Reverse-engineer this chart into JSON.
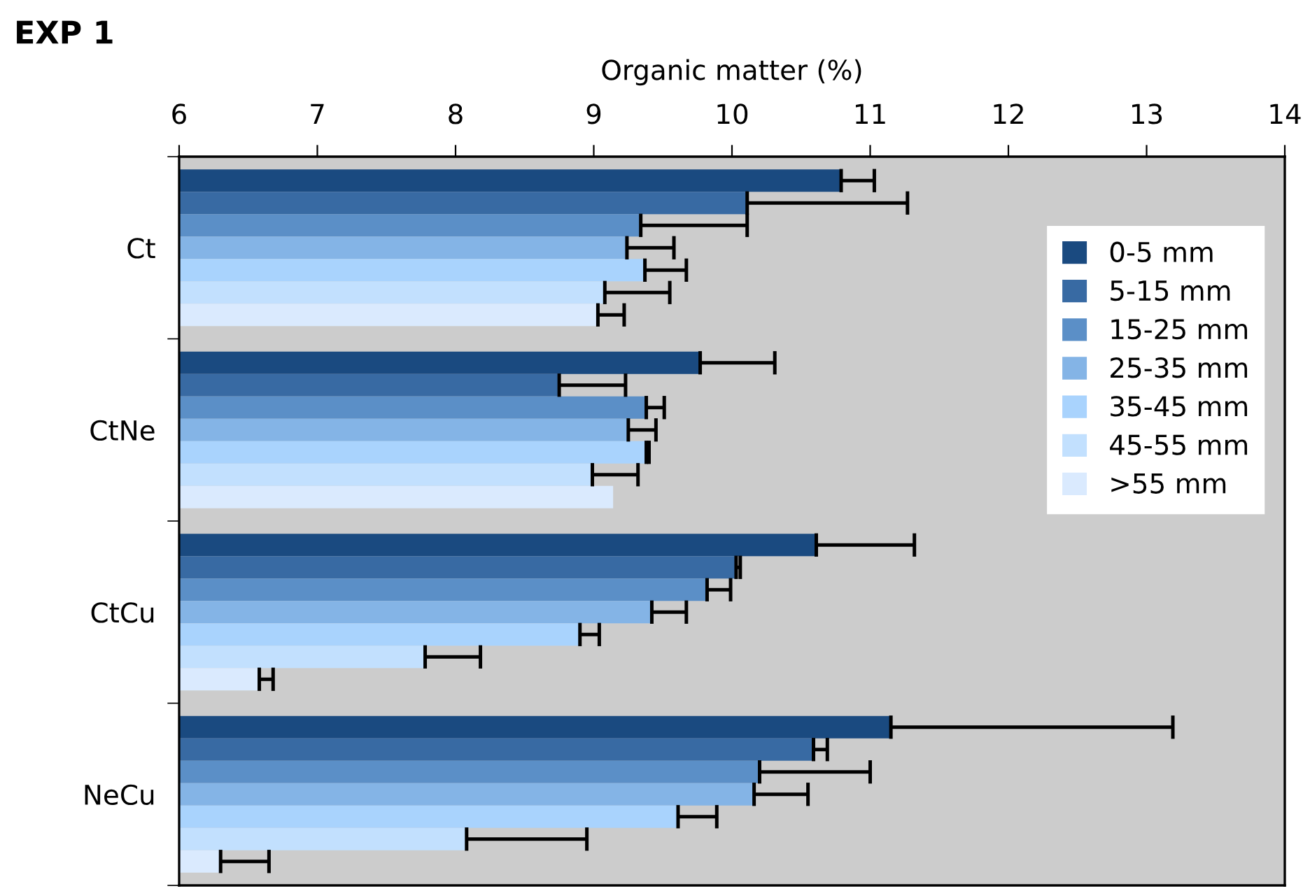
{
  "chart_data": {
    "type": "bar",
    "orientation": "horizontal",
    "title": "EXP 1",
    "xlabel": "Organic matter (%)",
    "categories": [
      "Ct",
      "CtNe",
      "CtCu",
      "NeCu"
    ],
    "series": [
      {
        "name": "0-5 mm",
        "color": "#1a4a80",
        "values": [
          10.79,
          9.77,
          10.61,
          11.15
        ],
        "errors": [
          [
            10.79,
            11.03
          ],
          [
            9.77,
            10.31
          ],
          [
            10.61,
            11.32
          ],
          [
            11.15,
            13.19
          ]
        ]
      },
      {
        "name": "5-15 mm",
        "color": "#386aa3",
        "values": [
          10.11,
          8.75,
          10.03,
          10.59
        ],
        "errors": [
          [
            10.11,
            11.27
          ],
          [
            8.75,
            9.23
          ],
          [
            10.03,
            10.06
          ],
          [
            10.59,
            10.69
          ]
        ]
      },
      {
        "name": "15-25 mm",
        "color": "#5b8fc7",
        "values": [
          9.34,
          9.38,
          9.82,
          10.2
        ],
        "errors": [
          [
            9.34,
            10.11
          ],
          [
            9.38,
            9.51
          ],
          [
            9.82,
            9.99
          ],
          [
            10.2,
            11.0
          ]
        ]
      },
      {
        "name": "25-35 mm",
        "color": "#84b4e6",
        "values": [
          9.24,
          9.25,
          9.42,
          10.16
        ],
        "errors": [
          [
            9.24,
            9.58
          ],
          [
            9.25,
            9.45
          ],
          [
            9.42,
            9.67
          ],
          [
            10.16,
            10.55
          ]
        ]
      },
      {
        "name": "35-45 mm",
        "color": "#a9d3fd",
        "values": [
          9.37,
          9.38,
          8.9,
          9.61
        ],
        "errors": [
          [
            9.37,
            9.67
          ],
          [
            9.38,
            9.4
          ],
          [
            8.9,
            9.04
          ],
          [
            9.61,
            9.89
          ]
        ]
      },
      {
        "name": "45-55 mm",
        "color": "#c2e0fe",
        "values": [
          9.08,
          8.99,
          7.78,
          8.08
        ],
        "errors": [
          [
            9.08,
            9.55
          ],
          [
            8.99,
            9.32
          ],
          [
            7.78,
            8.18
          ],
          [
            8.08,
            8.95
          ]
        ]
      },
      {
        "name": ">55 mm",
        "color": "#daeafe",
        "values": [
          9.03,
          9.14,
          6.58,
          6.3
        ],
        "errors": [
          [
            9.03,
            9.22
          ],
          null,
          [
            6.58,
            6.68
          ],
          [
            6.3,
            6.65
          ]
        ]
      }
    ],
    "xlim": [
      6,
      14
    ],
    "xticks": [
      6,
      7,
      8,
      9,
      10,
      11,
      12,
      13,
      14
    ],
    "grid": false,
    "legend": "right"
  }
}
